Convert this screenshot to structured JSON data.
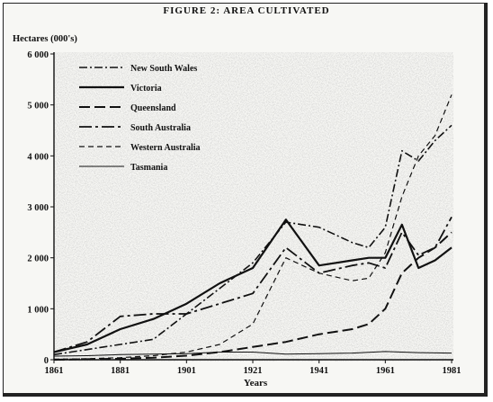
{
  "title": "FIGURE 2: AREA CULTIVATED",
  "chart_data": {
    "type": "line",
    "title": "FIGURE 2: AREA CULTIVATED",
    "xlabel": "Years",
    "ylabel": "Hectares (000's)",
    "xlim": [
      1861,
      1981
    ],
    "ylim": [
      0,
      6000
    ],
    "xticks": [
      "1861",
      "1881",
      "1901",
      "1921",
      "1941",
      "1961",
      "1981"
    ],
    "yticks": [
      "0",
      "1 000",
      "2 000",
      "3 000",
      "4 000",
      "5 000",
      "6 000"
    ],
    "legend_position": "top-left",
    "series": [
      {
        "name": "New South Wales",
        "style": "dash-dot",
        "x": [
          1861,
          1871,
          1881,
          1891,
          1901,
          1911,
          1921,
          1931,
          1941,
          1951,
          1956,
          1961,
          1966,
          1971,
          1976,
          1981
        ],
        "y": [
          100,
          200,
          300,
          400,
          900,
          1400,
          1900,
          2700,
          2600,
          2300,
          2200,
          2600,
          4100,
          3900,
          4300,
          4600
        ]
      },
      {
        "name": "Victoria",
        "style": "solid-bold",
        "x": [
          1861,
          1871,
          1881,
          1891,
          1901,
          1911,
          1921,
          1931,
          1941,
          1951,
          1956,
          1961,
          1966,
          1971,
          1976,
          1981
        ],
        "y": [
          150,
          300,
          600,
          800,
          1100,
          1500,
          1800,
          2750,
          1850,
          1950,
          2000,
          2000,
          2650,
          1800,
          1950,
          2200
        ]
      },
      {
        "name": "Queensland",
        "style": "dash-long",
        "x": [
          1861,
          1871,
          1881,
          1891,
          1901,
          1911,
          1921,
          1931,
          1941,
          1951,
          1956,
          1961,
          1966,
          1971,
          1976,
          1981
        ],
        "y": [
          0,
          10,
          20,
          40,
          80,
          150,
          250,
          350,
          500,
          600,
          700,
          1000,
          1700,
          2000,
          2200,
          2500
        ]
      },
      {
        "name": "South Australia",
        "style": "dash-dot-long",
        "x": [
          1861,
          1871,
          1881,
          1891,
          1901,
          1911,
          1921,
          1931,
          1941,
          1951,
          1956,
          1961,
          1966,
          1971,
          1976,
          1981
        ],
        "y": [
          150,
          350,
          850,
          900,
          900,
          1100,
          1300,
          2200,
          1700,
          1850,
          1900,
          1800,
          2500,
          2050,
          2200,
          2800
        ]
      },
      {
        "name": "Western Australia",
        "style": "dash-short",
        "x": [
          1861,
          1871,
          1881,
          1891,
          1901,
          1911,
          1921,
          1931,
          1941,
          1951,
          1956,
          1961,
          1966,
          1971,
          1976,
          1981
        ],
        "y": [
          10,
          20,
          40,
          80,
          150,
          300,
          700,
          2000,
          1700,
          1550,
          1600,
          2100,
          3200,
          4000,
          4400,
          5200
        ]
      },
      {
        "name": "Tasmania",
        "style": "solid-thin",
        "x": [
          1861,
          1871,
          1881,
          1891,
          1901,
          1911,
          1921,
          1931,
          1941,
          1951,
          1961,
          1971,
          1981
        ],
        "y": [
          70,
          80,
          100,
          110,
          120,
          150,
          150,
          110,
          120,
          130,
          160,
          140,
          130
        ]
      }
    ]
  }
}
